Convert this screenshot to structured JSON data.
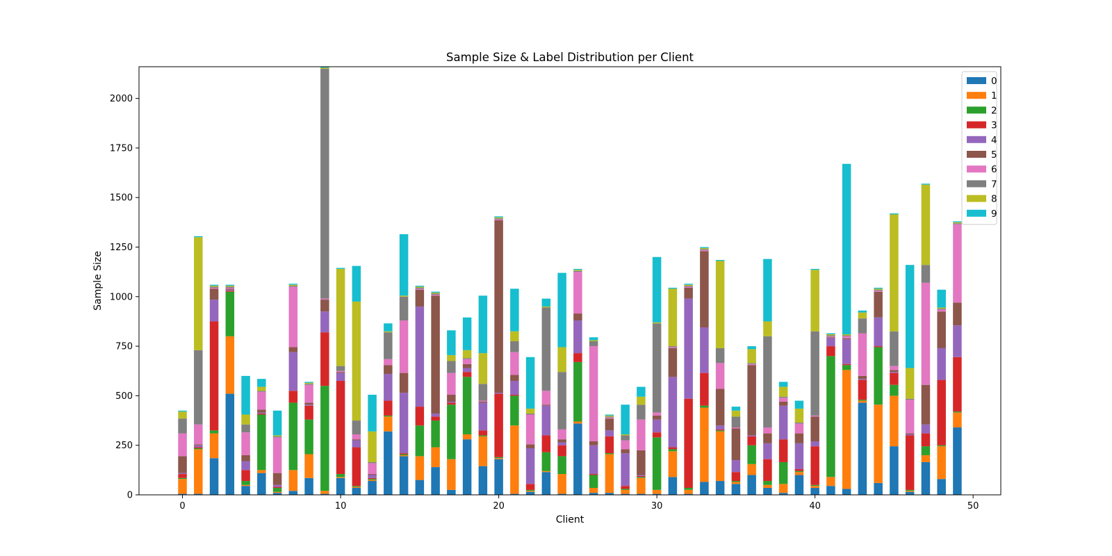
{
  "chart_data": {
    "type": "bar",
    "stacked": true,
    "title": "Sample Size & Label Distribution per Client",
    "xlabel": "Client",
    "ylabel": "Sample Size",
    "xlim": [
      -2.75,
      51.75
    ],
    "ylim": [
      0,
      2160
    ],
    "xticks": [
      0,
      10,
      20,
      30,
      40,
      50
    ],
    "yticks": [
      0,
      250,
      500,
      750,
      1000,
      1250,
      1500,
      1750,
      2000
    ],
    "grid": false,
    "legend": "top-right",
    "categories": [
      0,
      1,
      2,
      3,
      4,
      5,
      6,
      7,
      8,
      9,
      10,
      11,
      12,
      13,
      14,
      15,
      16,
      17,
      18,
      19,
      20,
      21,
      22,
      23,
      24,
      25,
      26,
      27,
      28,
      29,
      30,
      31,
      32,
      33,
      34,
      35,
      36,
      37,
      38,
      39,
      40,
      41,
      42,
      43,
      44,
      45,
      46,
      47,
      48,
      49
    ],
    "series": [
      {
        "name": "0",
        "color": "#1f77b4",
        "values": [
          5,
          5,
          185,
          510,
          45,
          110,
          10,
          20,
          85,
          5,
          85,
          35,
          70,
          320,
          195,
          75,
          140,
          25,
          280,
          145,
          180,
          5,
          15,
          115,
          5,
          360,
          10,
          10,
          5,
          5,
          5,
          90,
          5,
          65,
          70,
          55,
          100,
          35,
          10,
          100,
          35,
          45,
          30,
          465,
          60,
          245,
          15,
          165,
          80,
          340
        ]
      },
      {
        "name": "1",
        "color": "#ff7f0e",
        "values": [
          75,
          225,
          125,
          290,
          5,
          15,
          5,
          105,
          120,
          15,
          5,
          5,
          5,
          75,
          5,
          120,
          100,
          155,
          25,
          150,
          5,
          345,
          5,
          5,
          100,
          10,
          25,
          195,
          20,
          80,
          20,
          130,
          20,
          375,
          250,
          10,
          55,
          15,
          45,
          15,
          10,
          45,
          600,
          10,
          395,
          255,
          5,
          35,
          165,
          75
        ]
      },
      {
        "name": "2",
        "color": "#2ca02c",
        "values": [
          5,
          5,
          15,
          225,
          20,
          280,
          20,
          340,
          175,
          530,
          15,
          5,
          5,
          5,
          5,
          155,
          135,
          275,
          290,
          5,
          5,
          150,
          5,
          95,
          90,
          300,
          65,
          5,
          5,
          5,
          265,
          10,
          10,
          10,
          5,
          5,
          95,
          20,
          110,
          5,
          5,
          610,
          25,
          5,
          290,
          55,
          5,
          45,
          5,
          5
        ]
      },
      {
        "name": "3",
        "color": "#d62728",
        "values": [
          20,
          5,
          550,
          5,
          55,
          5,
          5,
          60,
          70,
          270,
          470,
          195,
          5,
          75,
          5,
          95,
          20,
          10,
          25,
          25,
          320,
          5,
          30,
          85,
          55,
          45,
          5,
          85,
          15,
          5,
          25,
          10,
          450,
          165,
          5,
          45,
          45,
          110,
          115,
          10,
          195,
          50,
          5,
          100,
          5,
          60,
          275,
          65,
          330,
          275
        ]
      },
      {
        "name": "4",
        "color": "#9467bd",
        "values": [
          5,
          10,
          110,
          5,
          45,
          5,
          10,
          195,
          5,
          105,
          40,
          35,
          15,
          135,
          305,
          505,
          15,
          5,
          20,
          140,
          5,
          70,
          180,
          150,
          15,
          165,
          145,
          30,
          165,
          5,
          65,
          355,
          505,
          230,
          20,
          60,
          5,
          80,
          170,
          130,
          25,
          40,
          125,
          5,
          145,
          5,
          5,
          45,
          160,
          160
        ]
      },
      {
        "name": "5",
        "color": "#8c564b",
        "values": [
          85,
          5,
          55,
          5,
          30,
          15,
          60,
          25,
          10,
          60,
          5,
          5,
          5,
          45,
          100,
          85,
          595,
          35,
          20,
          5,
          870,
          30,
          20,
          5,
          15,
          35,
          20,
          60,
          20,
          125,
          20,
          145,
          55,
          385,
          185,
          160,
          355,
          50,
          20,
          50,
          125,
          5,
          5,
          15,
          130,
          10,
          5,
          200,
          185,
          115
        ]
      },
      {
        "name": "6",
        "color": "#e377c2",
        "values": [
          115,
          100,
          5,
          5,
          115,
          90,
          180,
          305,
          90,
          5,
          5,
          25,
          55,
          30,
          265,
          5,
          5,
          110,
          25,
          5,
          5,
          115,
          150,
          70,
          50,
          210,
          480,
          5,
          45,
          155,
          15,
          5,
          5,
          5,
          130,
          5,
          5,
          30,
          20,
          50,
          5,
          5,
          10,
          215,
          5,
          20,
          170,
          515,
          10,
          395
        ]
      },
      {
        "name": "7",
        "color": "#7f7f7f",
        "values": [
          75,
          375,
          5,
          5,
          40,
          5,
          5,
          5,
          5,
          1160,
          25,
          70,
          5,
          135,
          120,
          5,
          5,
          60,
          5,
          85,
          5,
          55,
          5,
          420,
          290,
          5,
          25,
          5,
          25,
          75,
          450,
          5,
          5,
          5,
          75,
          55,
          5,
          460,
          5,
          5,
          425,
          5,
          5,
          75,
          5,
          175,
          5,
          90,
          5,
          5
        ]
      },
      {
        "name": "8",
        "color": "#bcbd22",
        "values": [
          35,
          570,
          5,
          5,
          50,
          20,
          5,
          5,
          5,
          5,
          490,
          600,
          155,
          5,
          5,
          5,
          5,
          30,
          40,
          155,
          5,
          50,
          25,
          5,
          125,
          5,
          5,
          5,
          5,
          40,
          5,
          290,
          5,
          5,
          440,
          30,
          70,
          75,
          50,
          70,
          310,
          5,
          5,
          30,
          5,
          590,
          155,
          405,
          5,
          5
        ]
      },
      {
        "name": "9",
        "color": "#17becf",
        "values": [
          5,
          5,
          5,
          5,
          195,
          40,
          125,
          5,
          5,
          5,
          5,
          180,
          185,
          40,
          310,
          5,
          5,
          125,
          165,
          290,
          5,
          215,
          260,
          40,
          375,
          5,
          15,
          5,
          150,
          50,
          330,
          5,
          5,
          5,
          5,
          20,
          15,
          315,
          25,
          40,
          5,
          5,
          860,
          10,
          5,
          5,
          520,
          5,
          90,
          5
        ]
      }
    ]
  }
}
